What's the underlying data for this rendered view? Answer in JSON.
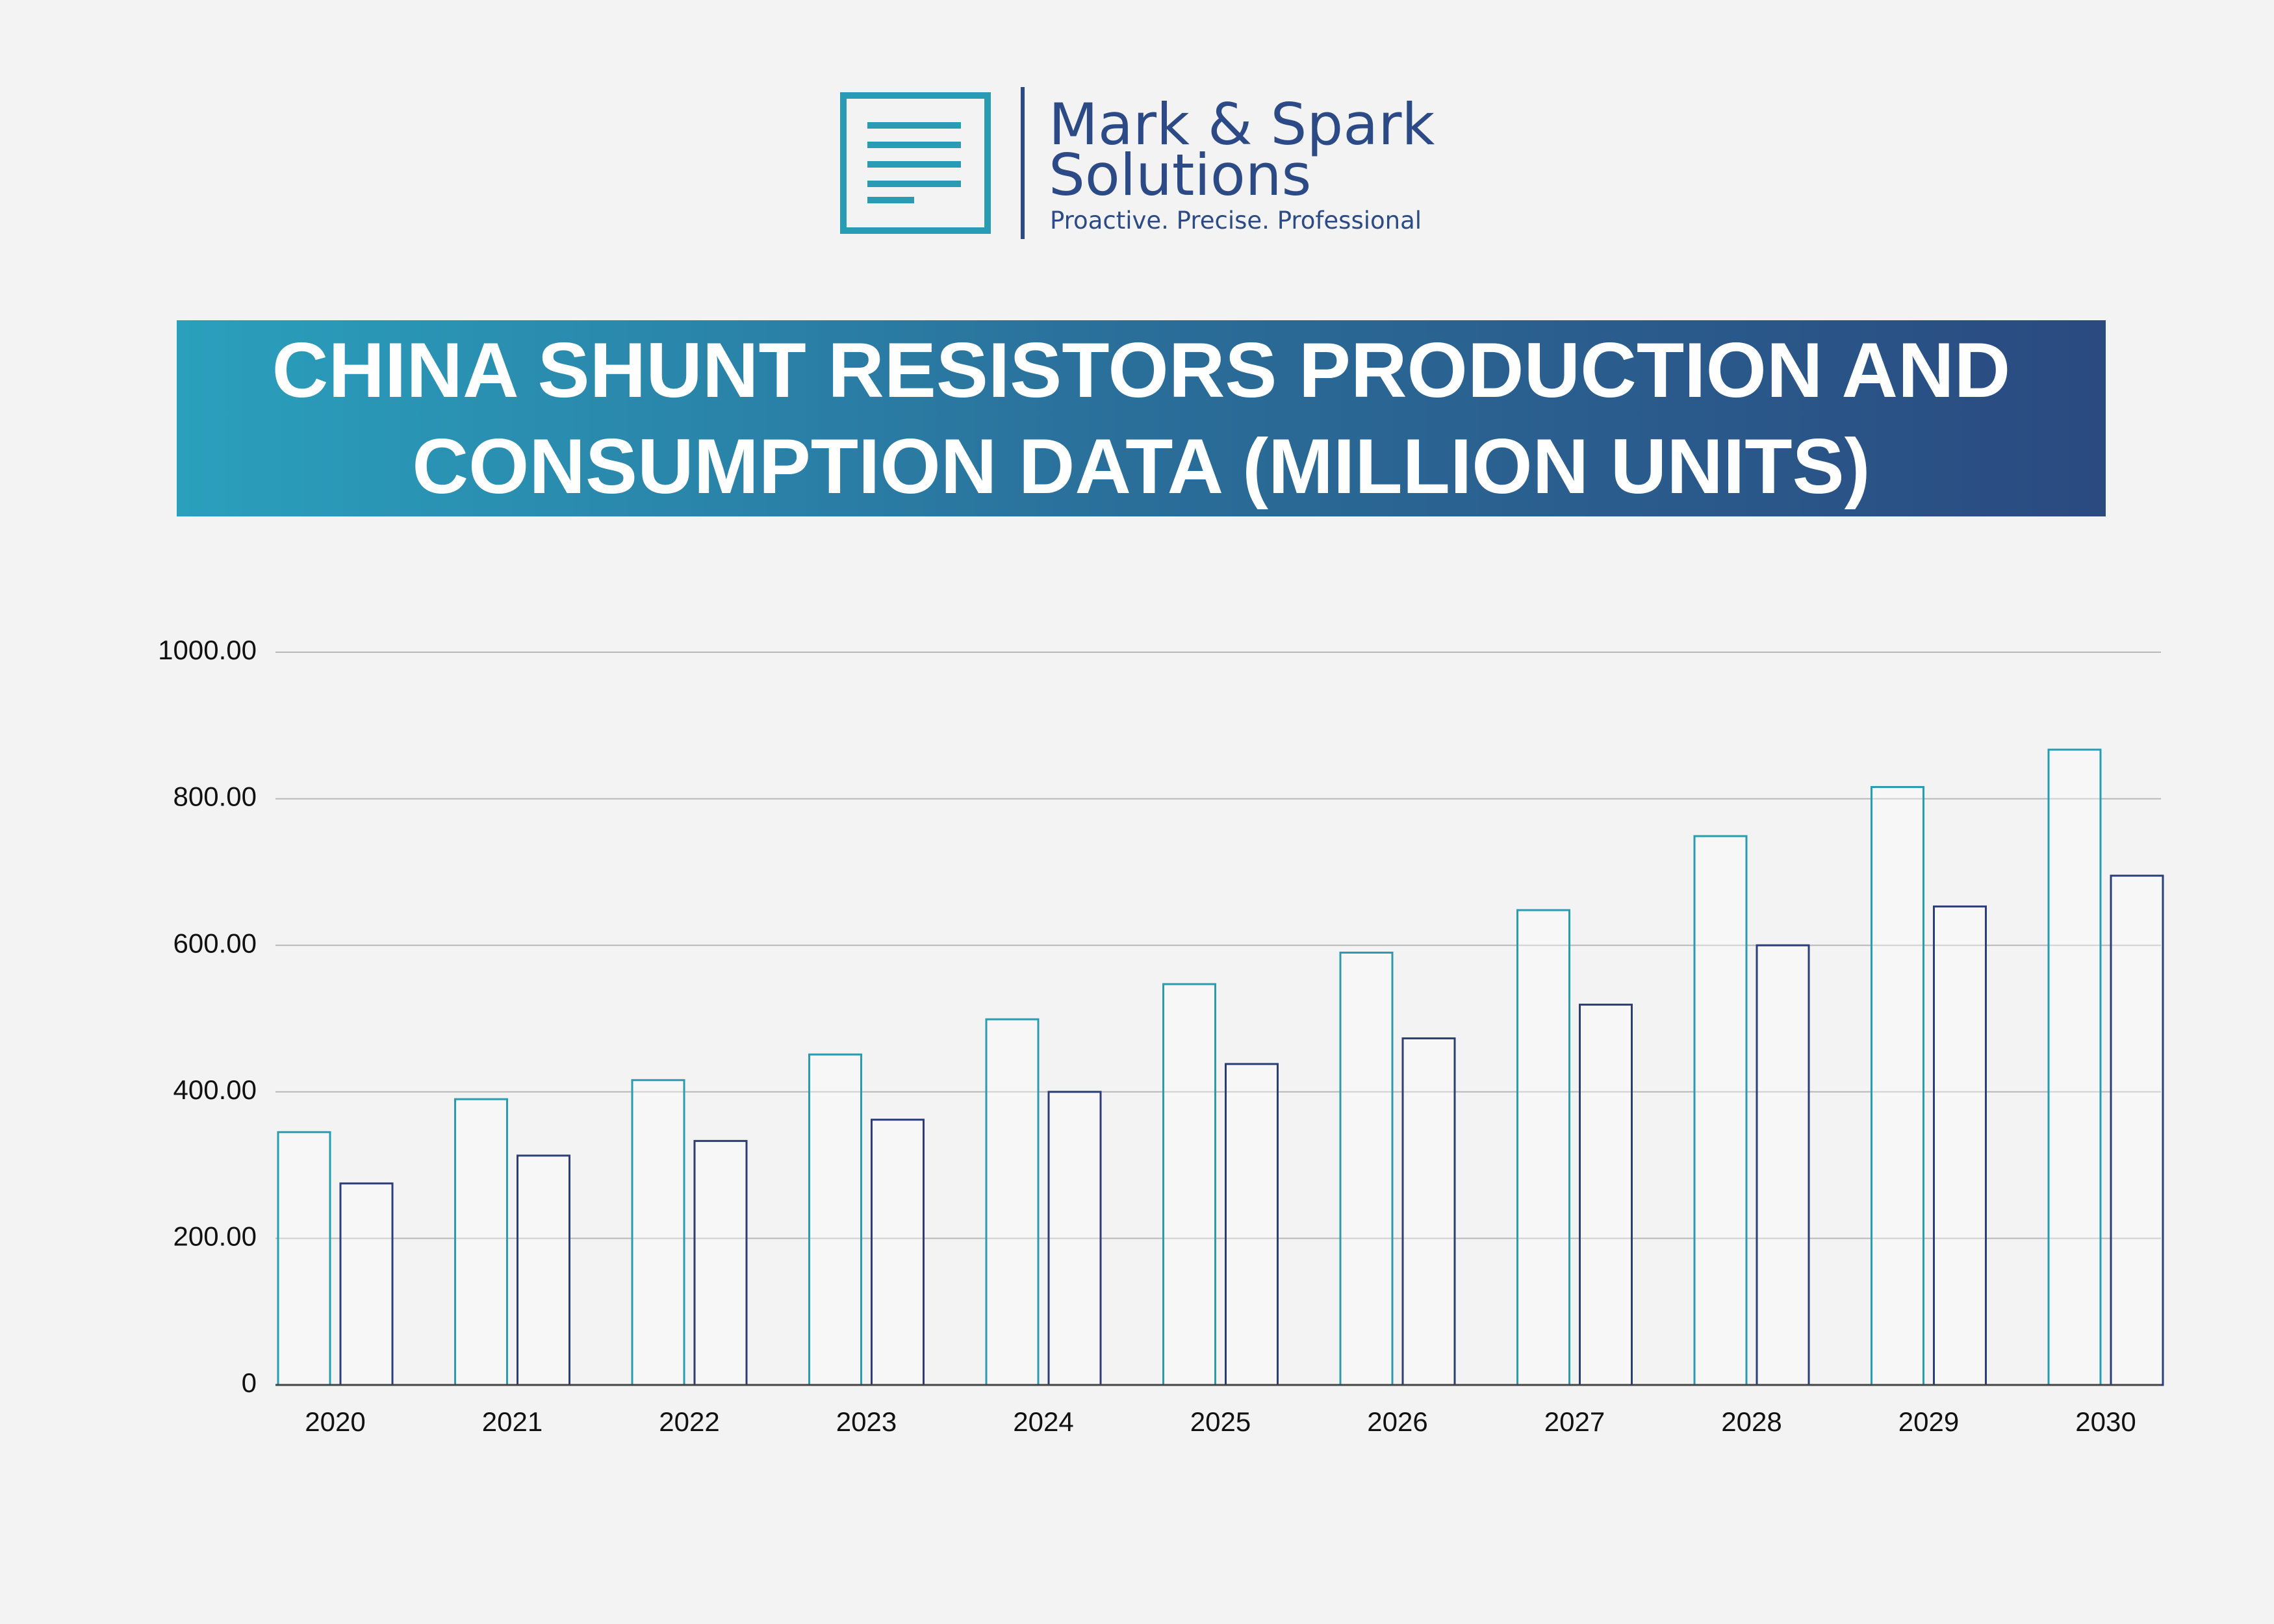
{
  "logo": {
    "name_line1": "Mark & Spark",
    "name_line2": "Solutions",
    "tagline": "Proactive. Precise. Professional"
  },
  "chart_data": {
    "type": "bar",
    "title": "CHINA SHUNT RESISTORS PRODUCTION AND CONSUMPTION DATA (MILLION UNITS)",
    "categories": [
      "2020",
      "2021",
      "2022",
      "2023",
      "2024",
      "2025",
      "2026",
      "2027",
      "2028",
      "2029",
      "2030"
    ],
    "series": [
      {
        "color": "#2a9cb2",
        "values": [
          345,
          390,
          416,
          451,
          499,
          547,
          590,
          648,
          749,
          816,
          867
        ]
      },
      {
        "color": "#2c3e78",
        "values": [
          275,
          313,
          333,
          362,
          400,
          438,
          473,
          519,
          600,
          653,
          695
        ]
      }
    ],
    "ylim": [
      0,
      1000
    ],
    "yticks": [
      0,
      {
        "value": 200,
        "label": "200.00"
      },
      {
        "value": 400,
        "label": "400.00"
      },
      {
        "value": 600,
        "label": "600.00"
      },
      {
        "value": 800,
        "label": "800.00"
      },
      {
        "value": 1000,
        "label": "1000.00"
      }
    ],
    "grid": true
  }
}
